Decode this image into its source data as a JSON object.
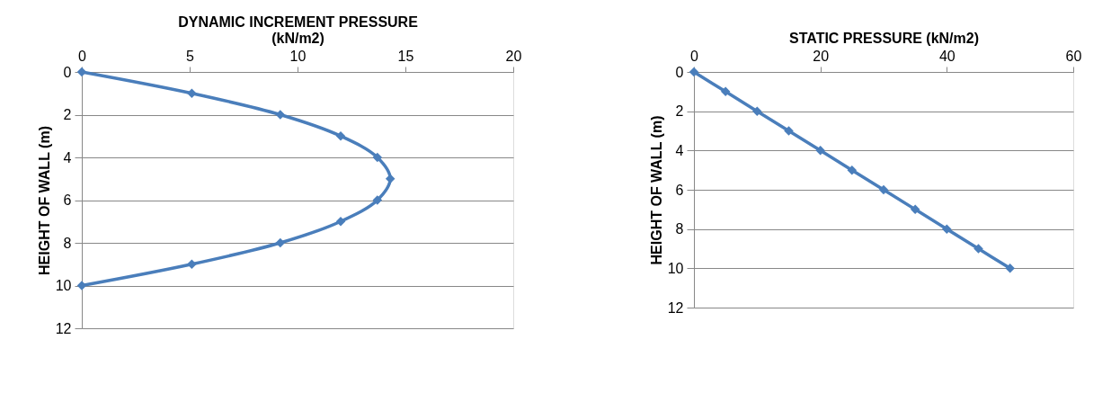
{
  "chart_data": [
    {
      "type": "line",
      "title": "DYNAMIC INCREMENT PRESSURE (kN/m2)",
      "ylabel": "HEIGHT OF WALL (m)",
      "series": [
        {
          "color": "#4a7ebb",
          "x": [
            0,
            5.1,
            9.2,
            12,
            13.7,
            14.3,
            13.7,
            12,
            9.2,
            5.1,
            0
          ],
          "values": [
            0,
            1,
            2,
            3,
            4,
            5,
            6,
            7,
            8,
            9,
            10
          ]
        }
      ],
      "xlim": [
        0,
        20
      ],
      "xticks": [
        0,
        5,
        10,
        15,
        20
      ],
      "ylim": [
        12,
        0
      ],
      "yticks": [
        0,
        2,
        4,
        6,
        8,
        10,
        12
      ],
      "grid": "y",
      "marker": "diamond",
      "line_style": "solid"
    },
    {
      "type": "line",
      "title": "STATIC PRESSURE (kN/m2)",
      "ylabel": "HEIGHT OF WALL (m)",
      "series": [
        {
          "color": "#4a7ebb",
          "x": [
            0,
            5,
            10,
            15,
            20,
            25,
            30,
            35,
            40,
            45,
            50
          ],
          "values": [
            0,
            1,
            2,
            3,
            4,
            5,
            6,
            7,
            8,
            9,
            10
          ]
        }
      ],
      "xlim": [
        0,
        60
      ],
      "xticks": [
        0,
        20,
        40,
        60
      ],
      "ylim": [
        12,
        0
      ],
      "yticks": [
        0,
        2,
        4,
        6,
        8,
        10,
        12
      ],
      "grid": "y",
      "marker": "diamond",
      "line_style": "solid"
    }
  ]
}
